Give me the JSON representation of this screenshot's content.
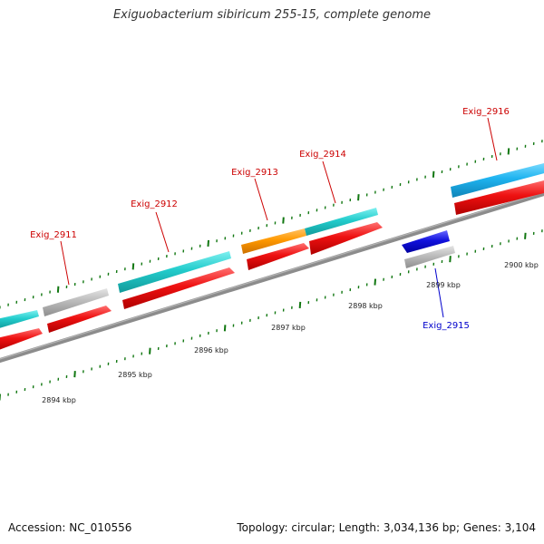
{
  "title": "Exiguobacterium sibiricum 255-15, complete genome",
  "footer": {
    "accession": "Accession: NC_010556",
    "summary": "Topology: circular; Length: 3,034,136 bp; Genes: 3,104"
  },
  "colors": {
    "backbone": "#8c8c8c",
    "cds_red": "#ee1111",
    "gene_cyan": "#22cccc",
    "gene_grey": "#bbbbbb",
    "gene_orange": "#ff9900",
    "gene_blue": "#1111dd",
    "gene_skyblue": "#1fb4f0",
    "tick_green": "#117711",
    "label_dark_red": "#cc0000",
    "label_blue": "#0000cc"
  },
  "genes": [
    {
      "name": "Exig_2911",
      "strand": "forward"
    },
    {
      "name": "Exig_2912",
      "strand": "forward"
    },
    {
      "name": "Exig_2913",
      "strand": "forward"
    },
    {
      "name": "Exig_2914",
      "strand": "forward"
    },
    {
      "name": "Exig_2915",
      "strand": "reverse"
    },
    {
      "name": "Exig_2916",
      "strand": "forward"
    }
  ],
  "scale_labels": [
    "2894 kbp",
    "2895 kbp",
    "2896 kbp",
    "2897 kbp",
    "2898 kbp",
    "2899 kbp",
    "2900 kbp"
  ]
}
